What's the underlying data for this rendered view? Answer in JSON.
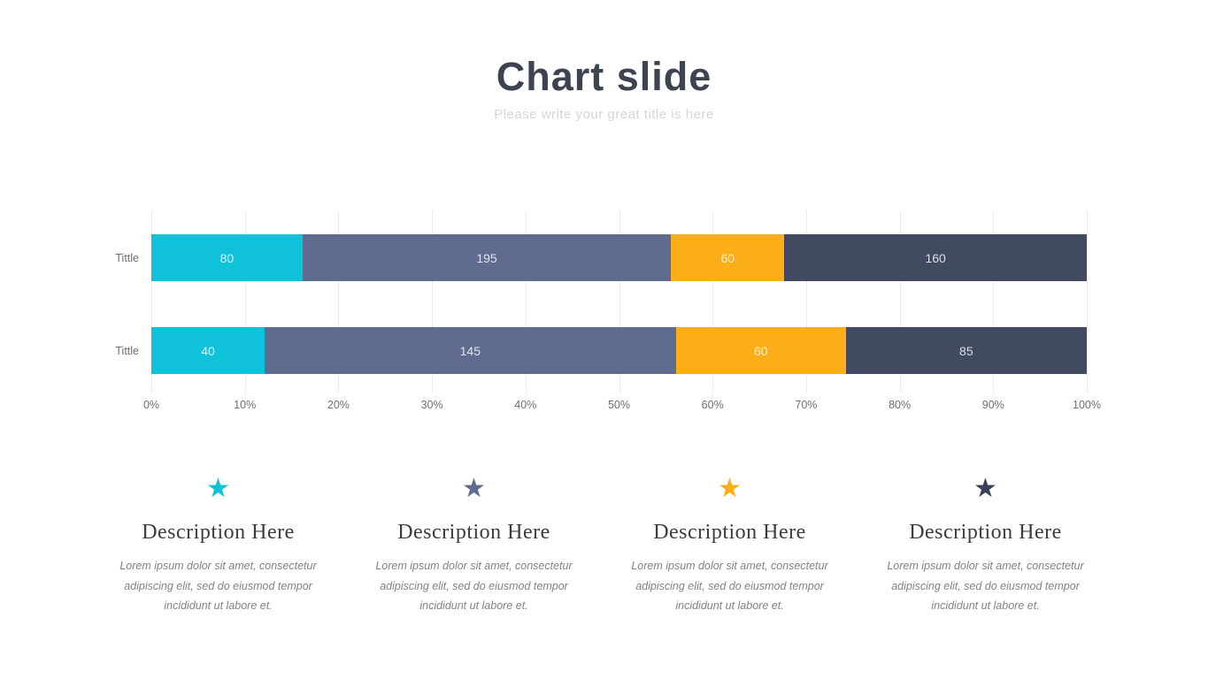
{
  "slide": {
    "title": "Chart slide",
    "subtitle": "Please write your great title is here"
  },
  "chart_data": {
    "type": "bar",
    "orientation": "horizontal",
    "stacked": true,
    "percent_stacked": true,
    "title": "",
    "xlabel": "",
    "ylabel": "",
    "grid": true,
    "legend": false,
    "categories": [
      "Tittle",
      "Tittle"
    ],
    "series": [
      {
        "name": "segment-1",
        "color": "#10c2d9",
        "values": [
          80,
          40
        ]
      },
      {
        "name": "segment-2",
        "color": "#5f6b8f",
        "values": [
          195,
          145
        ]
      },
      {
        "name": "segment-3",
        "color": "#fbae17",
        "values": [
          60,
          60
        ]
      },
      {
        "name": "segment-4",
        "color": "#424a62",
        "values": [
          160,
          85
        ]
      }
    ],
    "x_axis": {
      "min": 0,
      "max": 100,
      "tick_step_percent": 10,
      "ticks": [
        "0%",
        "10%",
        "20%",
        "30%",
        "40%",
        "50%",
        "60%",
        "70%",
        "80%",
        "90%",
        "100%"
      ]
    }
  },
  "descriptions": [
    {
      "icon": "star-icon",
      "glyph": "★",
      "color": "#10c2d9",
      "title": "Description Here",
      "body": "Lorem ipsum dolor sit amet, consectetur adipiscing elit, sed do eiusmod tempor incididunt ut labore et."
    },
    {
      "icon": "star-icon",
      "glyph": "★",
      "color": "#5f6b8f",
      "title": "Description Here",
      "body": "Lorem ipsum dolor sit amet, consectetur adipiscing elit, sed do eiusmod tempor incididunt ut labore et."
    },
    {
      "icon": "star-icon",
      "glyph": "★",
      "color": "#fbae17",
      "title": "Description Here",
      "body": "Lorem ipsum dolor sit amet, consectetur adipiscing elit, sed do eiusmod tempor incididunt ut labore et."
    },
    {
      "icon": "star-icon",
      "glyph": "★",
      "color": "#39415a",
      "title": "Description Here",
      "body": "Lorem ipsum dolor sit amet, consectetur adipiscing elit, sed do eiusmod tempor incididunt ut labore et."
    }
  ]
}
